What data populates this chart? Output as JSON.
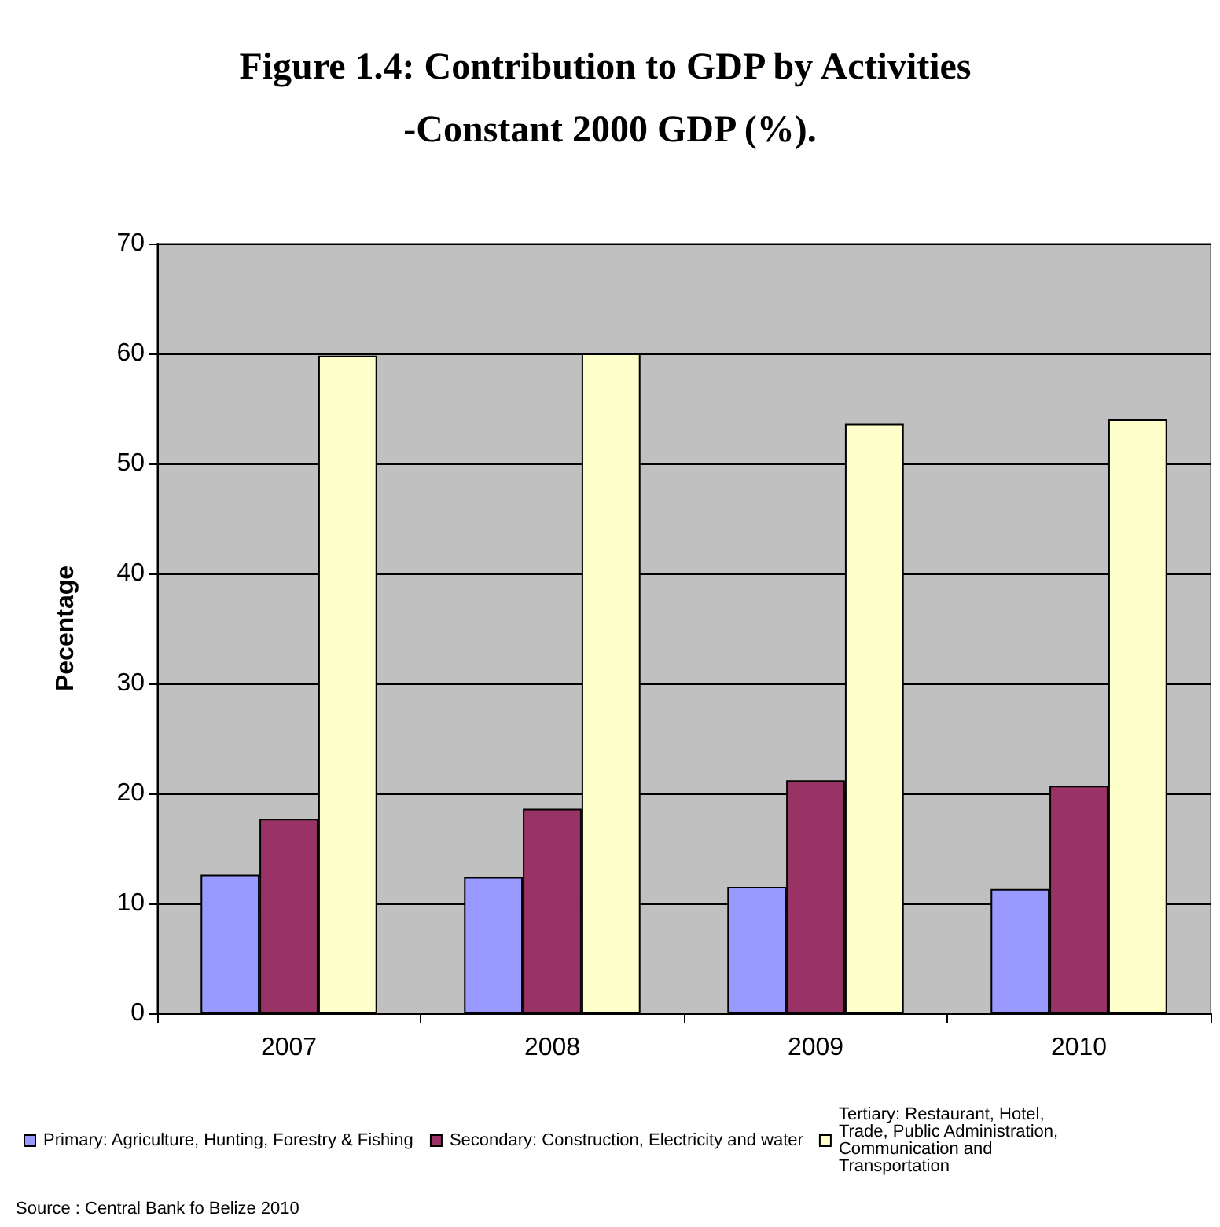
{
  "chart_data": {
    "type": "bar",
    "title": "Figure 1.4: Contribution to GDP by Activities -Constant 2000 GDP (%).",
    "ylabel": "Pecentage",
    "categories": [
      "2007",
      "2008",
      "2009",
      "2010"
    ],
    "series": [
      {
        "name": "Primary: Agriculture, Hunting, Forestry & Fishing",
        "color": "#9999ff",
        "values": [
          12.6,
          12.4,
          11.5,
          11.3
        ]
      },
      {
        "name": "Secondary: Construction, Electricity and water",
        "color": "#993366",
        "values": [
          17.7,
          18.6,
          21.2,
          20.7
        ]
      },
      {
        "name": "Tertiary: Restaurant, Hotel, Trade, Public Administration, Communication and Transportation",
        "color": "#ffffcc",
        "values": [
          59.8,
          60.0,
          53.6,
          54.0
        ]
      }
    ],
    "ylim": [
      0,
      70
    ],
    "yticks": [
      0,
      10,
      20,
      30,
      40,
      50,
      60,
      70
    ],
    "grid": "y",
    "legend": "bottom",
    "annotations": [
      "Source : Central Bank fo Belize 2010"
    ]
  }
}
